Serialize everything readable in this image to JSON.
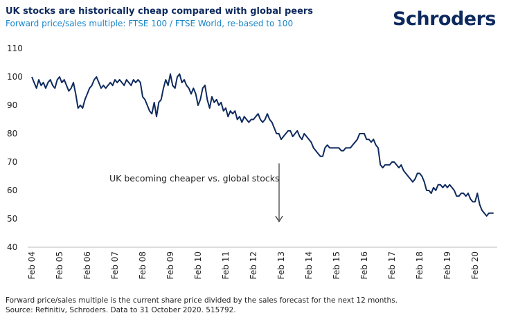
{
  "chart_data": {
    "type": "line",
    "title": "UK stocks are historically cheap compared with global peers",
    "subtitle": "Forward price/sales multiple: FTSE 100 / FTSE World, re-based to 100",
    "annotation": "UK becoming cheaper vs. global stocks",
    "color": "#0e2a5e",
    "categories": [
      "Feb 04",
      null,
      null,
      null,
      null,
      null,
      null,
      null,
      null,
      null,
      null,
      null,
      "Feb 05",
      null,
      null,
      null,
      null,
      null,
      null,
      null,
      null,
      null,
      null,
      null,
      "Feb 06",
      null,
      null,
      null,
      null,
      null,
      null,
      null,
      null,
      null,
      null,
      null,
      "Feb 07",
      null,
      null,
      null,
      null,
      null,
      null,
      null,
      null,
      null,
      null,
      null,
      "Feb 08",
      null,
      null,
      null,
      null,
      null,
      null,
      null,
      null,
      null,
      null,
      null,
      "Feb 09",
      null,
      null,
      null,
      null,
      null,
      null,
      null,
      null,
      null,
      null,
      null,
      "Feb 10",
      null,
      null,
      null,
      null,
      null,
      null,
      null,
      null,
      null,
      null,
      null,
      "Feb 11",
      null,
      null,
      null,
      null,
      null,
      null,
      null,
      null,
      null,
      null,
      null,
      "Feb 12",
      null,
      null,
      null,
      null,
      null,
      null,
      null,
      null,
      null,
      null,
      null,
      "Feb 13",
      null,
      null,
      null,
      null,
      null,
      null,
      null,
      null,
      null,
      null,
      null,
      "Feb 14",
      null,
      null,
      null,
      null,
      null,
      null,
      null,
      null,
      null,
      null,
      null,
      "Feb 15",
      null,
      null,
      null,
      null,
      null,
      null,
      null,
      null,
      null,
      null,
      null,
      "Feb 16",
      null,
      null,
      null,
      null,
      null,
      null,
      null,
      null,
      null,
      null,
      null,
      "Feb 17",
      null,
      null,
      null,
      null,
      null,
      null,
      null,
      null,
      null,
      null,
      null,
      "Feb 18",
      null,
      null,
      null,
      null,
      null,
      null,
      null,
      null,
      null,
      null,
      null,
      "Feb 19",
      null,
      null,
      null,
      null,
      null,
      null,
      null,
      null,
      null,
      null,
      null,
      "Feb 20",
      null,
      null,
      null,
      null,
      null,
      null,
      null,
      null
    ],
    "values": [
      100,
      98,
      96,
      99,
      97,
      98,
      96,
      98,
      99,
      97,
      96,
      99,
      100,
      98,
      99,
      97,
      95,
      96,
      98,
      94,
      89,
      90,
      89,
      92,
      94,
      96,
      97,
      99,
      100,
      98,
      96,
      97,
      96,
      97,
      98,
      97,
      99,
      98,
      99,
      98,
      97,
      99,
      98,
      97,
      99,
      98,
      99,
      98,
      93,
      92,
      90,
      88,
      87,
      91,
      86,
      91,
      92,
      96,
      99,
      97,
      101,
      97,
      96,
      100,
      101,
      98,
      99,
      97,
      96,
      94,
      96,
      94,
      90,
      92,
      96,
      97,
      92,
      89,
      93,
      91,
      92,
      90,
      91,
      88,
      89,
      86,
      88,
      87,
      88,
      85,
      86,
      84,
      86,
      85,
      84,
      85,
      85,
      86,
      87,
      85,
      84,
      85,
      87,
      85,
      84,
      82,
      80,
      80,
      78,
      79,
      80,
      81,
      81,
      79,
      80,
      81,
      79,
      78,
      80,
      79,
      78,
      77,
      75,
      74,
      73,
      72,
      72,
      75,
      76,
      75,
      75,
      75,
      75,
      75,
      74,
      74,
      75,
      75,
      75,
      76,
      77,
      78,
      80,
      80,
      80,
      78,
      78,
      77,
      78,
      76,
      75,
      69,
      68,
      69,
      69,
      69,
      70,
      70,
      69,
      68,
      69,
      67,
      66,
      65,
      64,
      63,
      64,
      66,
      66,
      65,
      63,
      60,
      60,
      59,
      61,
      60,
      62,
      62,
      61,
      62,
      61,
      62,
      61,
      60,
      58,
      58,
      59,
      59,
      58,
      59,
      57,
      56,
      56,
      59,
      55,
      53,
      52,
      51,
      52,
      52,
      52
    ],
    "ylim": [
      40,
      110
    ],
    "yticks": [
      40,
      50,
      60,
      70,
      80,
      90,
      100,
      110
    ],
    "grid": false
  },
  "logo": "Schroders",
  "notes": [
    "Forward price/sales multiple is the current share price divided by the sales forecast for the next 12 months.",
    "Source: Refinitiv, Schroders. Data to 31 October 2020. 515792."
  ]
}
